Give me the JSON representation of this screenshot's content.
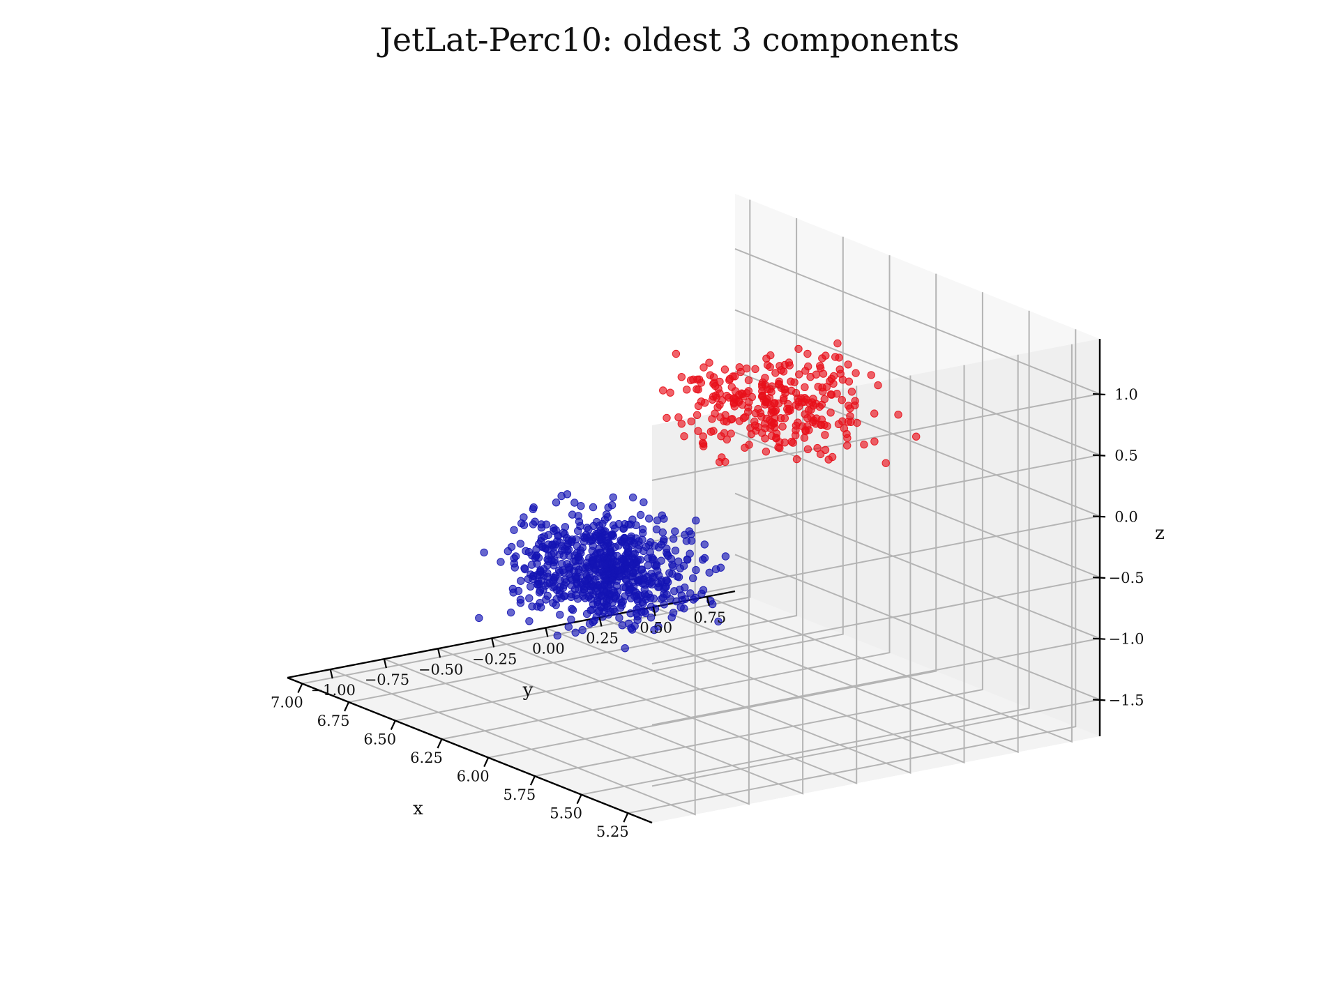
{
  "chart_data": {
    "type": "scatter",
    "projection": "3d",
    "title": "JetLat-Perc10: oldest 3 components",
    "xlabel": "x",
    "ylabel": "y",
    "zlabel": "z",
    "xlim": [
      5.12,
      7.08
    ],
    "ylim": [
      -1.2,
      0.88
    ],
    "zlim": [
      -1.8,
      1.45
    ],
    "xticks": [
      "5.25",
      "5.50",
      "5.75",
      "6.00",
      "6.25",
      "6.50",
      "6.75",
      "7.00"
    ],
    "yticks": [
      "−1.00",
      "−0.75",
      "−0.50",
      "−0.25",
      "0.00",
      "0.25",
      "0.50",
      "0.75"
    ],
    "zticks": [
      "−1.5",
      "−1.0",
      "−0.5",
      "0.0",
      "0.5",
      "1.0"
    ],
    "grid": true,
    "series": [
      {
        "color": "#e8101a",
        "count": 300,
        "center": [
          6.2,
          0.3,
          0.45
        ],
        "spread": [
          0.35,
          0.35,
          0.35
        ]
      },
      {
        "color": "#1414b4",
        "count": 700,
        "center": [
          6.15,
          -0.55,
          -0.55
        ],
        "spread": [
          0.3,
          0.32,
          0.42
        ]
      }
    ]
  }
}
